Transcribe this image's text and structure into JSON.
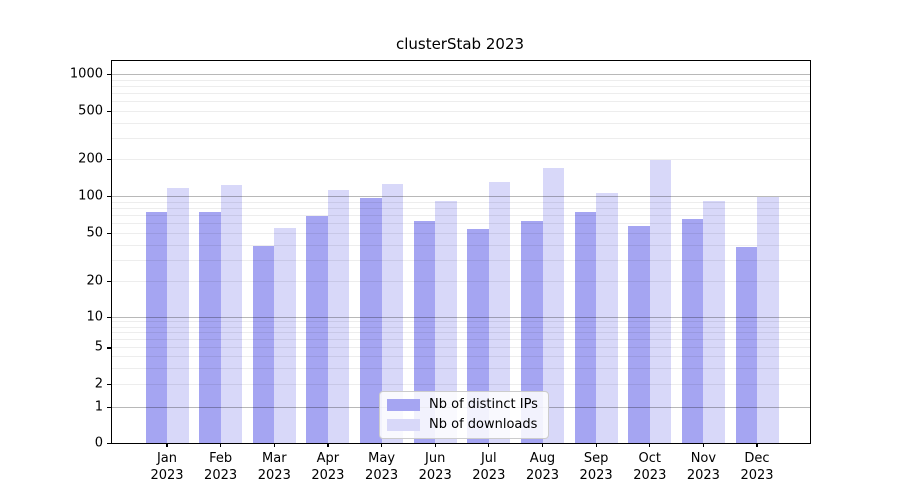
{
  "title": "clusterStab 2023",
  "chart_data": {
    "type": "bar",
    "title": "clusterStab 2023",
    "categories": [
      "Jan",
      "Feb",
      "Mar",
      "Apr",
      "May",
      "Jun",
      "Jul",
      "Aug",
      "Sep",
      "Oct",
      "Nov",
      "Dec"
    ],
    "category_year": "2023",
    "series": [
      {
        "name": "Nb of distinct IPs",
        "color": "#a5a5f2",
        "values": [
          74,
          74,
          39,
          69,
          96,
          63,
          54,
          63,
          74,
          57,
          65,
          38
        ]
      },
      {
        "name": "Nb of downloads",
        "color": "#d8d8f9",
        "values": [
          117,
          122,
          55,
          111,
          125,
          92,
          130,
          170,
          106,
          195,
          92,
          98
        ]
      }
    ],
    "xlabel": "",
    "ylabel": "",
    "yscale": "symlog",
    "yticks": [
      0,
      1,
      2,
      5,
      10,
      20,
      50,
      100,
      200,
      500,
      1000
    ],
    "ytick_labels": [
      "0",
      "1",
      "2",
      "5",
      "10",
      "20",
      "50",
      "100",
      "200",
      "500",
      "1000"
    ],
    "ylim": [
      0,
      1300
    ],
    "grid": true,
    "gridlines_over_bars": true,
    "legend_position": "lower center",
    "colors": {
      "major_grid": "rgba(0,0,0,0.28)",
      "minor_grid": "rgba(0,0,0,0.07)",
      "spine": "#000000",
      "background": "#ffffff"
    }
  }
}
